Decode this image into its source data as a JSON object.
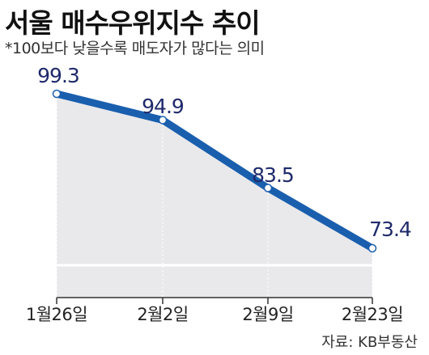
{
  "chart_data": {
    "type": "line",
    "title": "서울 매수우위지수 추이",
    "subtitle": "*100보다 낮을수록 매도자가 많다는 의미",
    "categories": [
      "1월26일",
      "2월2일",
      "2월9일",
      "2월23일"
    ],
    "values": [
      99.3,
      94.9,
      83.5,
      73.4
    ],
    "data_labels": [
      "99.3",
      "94.9",
      "83.5",
      "73.4"
    ],
    "source": "자료: KB부동산",
    "ylim": [
      60,
      105
    ],
    "grid": false,
    "legend": "none",
    "colors": {
      "line": "#1a5fae",
      "area": "#e9e9ec",
      "marker_fill": "#ffffff",
      "label": "#1f2a6b"
    }
  }
}
